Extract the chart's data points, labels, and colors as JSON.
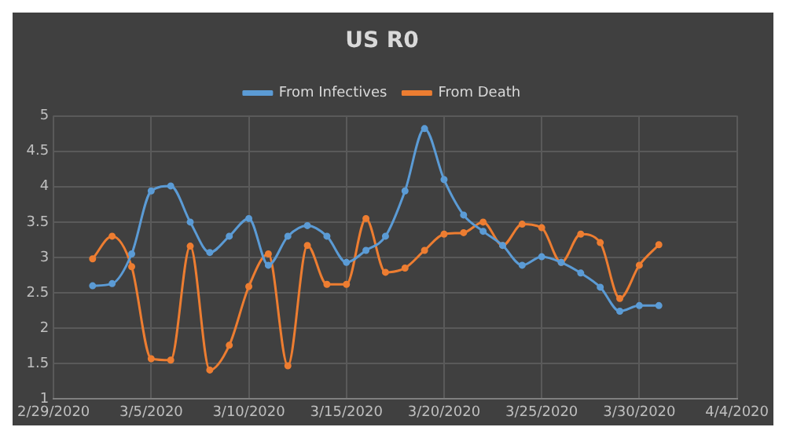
{
  "chart_data": {
    "type": "line",
    "title": "US R0",
    "x": [
      "2020-03-02",
      "2020-03-03",
      "2020-03-04",
      "2020-03-05",
      "2020-03-06",
      "2020-03-07",
      "2020-03-08",
      "2020-03-09",
      "2020-03-10",
      "2020-03-11",
      "2020-03-12",
      "2020-03-13",
      "2020-03-14",
      "2020-03-15",
      "2020-03-16",
      "2020-03-17",
      "2020-03-18",
      "2020-03-19",
      "2020-03-20",
      "2020-03-21",
      "2020-03-22",
      "2020-03-23",
      "2020-03-24",
      "2020-03-25",
      "2020-03-26",
      "2020-03-27",
      "2020-03-28",
      "2020-03-29",
      "2020-03-30",
      "2020-03-31"
    ],
    "series": [
      {
        "name": "From Infectives",
        "color": "#5b9bd5",
        "values": [
          2.6,
          2.63,
          3.05,
          3.94,
          4.01,
          3.5,
          3.07,
          3.3,
          3.55,
          2.89,
          3.3,
          3.45,
          3.3,
          2.93,
          3.1,
          3.3,
          3.94,
          4.82,
          4.1,
          3.6,
          3.37,
          3.17,
          2.89,
          3.01,
          2.93,
          2.78,
          2.58,
          2.24,
          2.32,
          2.32
        ]
      },
      {
        "name": "From Death",
        "color": "#ed7d31",
        "values": [
          2.98,
          3.3,
          2.87,
          1.57,
          1.55,
          3.16,
          1.41,
          1.76,
          2.59,
          3.05,
          1.47,
          3.17,
          2.62,
          2.62,
          3.55,
          2.79,
          2.85,
          3.1,
          3.33,
          3.35,
          3.5,
          3.17,
          3.47,
          3.42,
          2.93,
          3.33,
          3.21,
          2.42,
          2.89,
          3.18
        ]
      }
    ],
    "xlim": [
      "2020-02-29",
      "2020-04-04"
    ],
    "xticks": [
      {
        "value": "2020-02-29",
        "label": "2/29/2020"
      },
      {
        "value": "2020-03-05",
        "label": "3/5/2020"
      },
      {
        "value": "2020-03-10",
        "label": "3/10/2020"
      },
      {
        "value": "2020-03-15",
        "label": "3/15/2020"
      },
      {
        "value": "2020-03-20",
        "label": "3/20/2020"
      },
      {
        "value": "2020-03-25",
        "label": "3/25/2020"
      },
      {
        "value": "2020-03-30",
        "label": "3/30/2020"
      },
      {
        "value": "2020-04-04",
        "label": "4/4/2020"
      }
    ],
    "ylim": [
      1,
      5
    ],
    "yticks": [
      1,
      1.5,
      2,
      2.5,
      3,
      3.5,
      4,
      4.5,
      5
    ],
    "grid": true,
    "legend": "top",
    "marker": "circle",
    "line_style": "solid"
  }
}
